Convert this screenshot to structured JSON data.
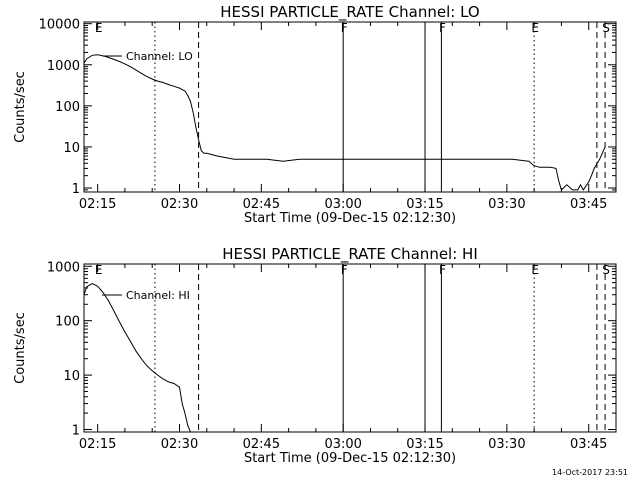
{
  "chart_data": [
    {
      "type": "line",
      "title": "HESSI PARTICLE_RATE Channel: LO",
      "xlabel": "Start Time (09-Dec-15 02:12:30)",
      "ylabel": "Counts/sec",
      "yscale": "log",
      "ylim": [
        0.8,
        11000
      ],
      "xlim": [
        "02:12:30",
        "03:50:00"
      ],
      "x_ticks": [
        "02:15",
        "02:30",
        "02:45",
        "03:00",
        "03:15",
        "03:30",
        "03:45"
      ],
      "y_ticks": [
        "1",
        "10",
        "100",
        "1000",
        "10000"
      ],
      "y_tick_values": [
        1,
        10,
        100,
        1000,
        10000
      ],
      "legend": "Channel: LO",
      "flags": [
        {
          "label": "E",
          "time": "02:15:00",
          "style": "none"
        },
        {
          "label": "",
          "time": "02:25:30",
          "style": "dotted"
        },
        {
          "label": "",
          "time": "02:33:30",
          "style": "dashed"
        },
        {
          "label": "F",
          "time": "03:00:00",
          "style": "solid"
        },
        {
          "label": "",
          "time": "03:15:00",
          "style": "solid"
        },
        {
          "label": "F",
          "time": "03:18:00",
          "style": "solid"
        },
        {
          "label": "E",
          "time": "03:35:00",
          "style": "dotted"
        },
        {
          "label": "",
          "time": "03:46:30",
          "style": "dashed"
        },
        {
          "label": "S",
          "time": "03:48:00",
          "style": "dashed"
        }
      ],
      "series": [
        {
          "x": [
            "02:12:30",
            "02:13:00",
            "02:14:00",
            "02:15:00",
            "02:16:00",
            "02:17:00",
            "02:18:00",
            "02:19:00",
            "02:20:00",
            "02:21:00",
            "02:22:00",
            "02:23:00",
            "02:24:00",
            "02:25:00",
            "02:26:00",
            "02:27:00",
            "02:28:00",
            "02:29:00",
            "02:30:00",
            "02:31:00",
            "02:31:30",
            "02:32:00",
            "02:32:30",
            "02:33:00",
            "02:33:30",
            "02:34:00",
            "02:34:30",
            "02:35:00",
            "02:37:00",
            "02:40:00",
            "02:43:00",
            "02:46:00",
            "02:49:00",
            "02:52:00",
            "02:55:00",
            "02:58:00",
            "03:01:00",
            "03:04:00",
            "03:07:00",
            "03:10:00",
            "03:13:00",
            "03:16:00",
            "03:19:00",
            "03:22:00",
            "03:25:00",
            "03:28:00",
            "03:31:00",
            "03:34:00",
            "03:35:00",
            "03:36:00",
            "03:37:00",
            "03:38:00",
            "03:39:00",
            "03:39:30",
            "03:40:00",
            "03:41:00",
            "03:42:00",
            "03:43:00",
            "03:43:30",
            "03:44:00",
            "03:45:00",
            "03:45:30",
            "03:46:00",
            "03:47:00",
            "03:48:00"
          ],
          "y": [
            1100,
            1400,
            1700,
            1750,
            1650,
            1500,
            1350,
            1200,
            1050,
            900,
            750,
            620,
            520,
            450,
            400,
            370,
            330,
            300,
            270,
            230,
            180,
            130,
            70,
            30,
            15,
            8,
            7,
            7,
            6,
            5,
            5,
            5,
            4.5,
            5,
            5,
            5,
            5,
            5,
            5,
            5,
            5,
            5,
            5,
            5,
            5,
            5,
            5,
            4.5,
            3.5,
            3.2,
            3.2,
            3.2,
            3,
            1.5,
            0.9,
            1.2,
            0.9,
            0.9,
            1.2,
            0.9,
            1.4,
            2,
            3,
            5,
            10
          ]
        }
      ]
    },
    {
      "type": "line",
      "title": "HESSI PARTICLE_RATE Channel: HI",
      "xlabel": "Start Time (09-Dec-15 02:12:30)",
      "ylabel": "Counts/sec",
      "yscale": "log",
      "ylim": [
        0.9,
        1100
      ],
      "xlim": [
        "02:12:30",
        "03:50:00"
      ],
      "x_ticks": [
        "02:15",
        "02:30",
        "02:45",
        "03:00",
        "03:15",
        "03:30",
        "03:45"
      ],
      "y_ticks": [
        "1",
        "10",
        "100",
        "1000"
      ],
      "y_tick_values": [
        1,
        10,
        100,
        1000
      ],
      "legend": "Channel: HI",
      "flags": [
        {
          "label": "E",
          "time": "02:15:00",
          "style": "none"
        },
        {
          "label": "",
          "time": "02:25:30",
          "style": "dotted"
        },
        {
          "label": "",
          "time": "02:33:30",
          "style": "dashed"
        },
        {
          "label": "F",
          "time": "03:00:00",
          "style": "solid"
        },
        {
          "label": "",
          "time": "03:15:00",
          "style": "solid"
        },
        {
          "label": "F",
          "time": "03:18:00",
          "style": "solid"
        },
        {
          "label": "E",
          "time": "03:35:00",
          "style": "dotted"
        },
        {
          "label": "",
          "time": "03:46:30",
          "style": "dashed"
        },
        {
          "label": "S",
          "time": "03:48:00",
          "style": "dashed"
        }
      ],
      "series": [
        {
          "x": [
            "02:12:30",
            "02:13:00",
            "02:14:00",
            "02:15:00",
            "02:16:00",
            "02:17:00",
            "02:18:00",
            "02:19:00",
            "02:20:00",
            "02:21:00",
            "02:22:00",
            "02:23:00",
            "02:24:00",
            "02:25:00",
            "02:26:00",
            "02:27:00",
            "02:28:00",
            "02:29:00",
            "02:30:00",
            "02:30:30",
            "02:31:00",
            "02:31:30",
            "02:32:00"
          ],
          "y": [
            300,
            420,
            480,
            430,
            330,
            230,
            150,
            95,
            62,
            42,
            28,
            20,
            15,
            12,
            10,
            8.5,
            7.5,
            7,
            6,
            3,
            2,
            1.2,
            0.9
          ]
        }
      ]
    }
  ],
  "footer": {
    "date": "14-Oct-2017 23:51"
  }
}
